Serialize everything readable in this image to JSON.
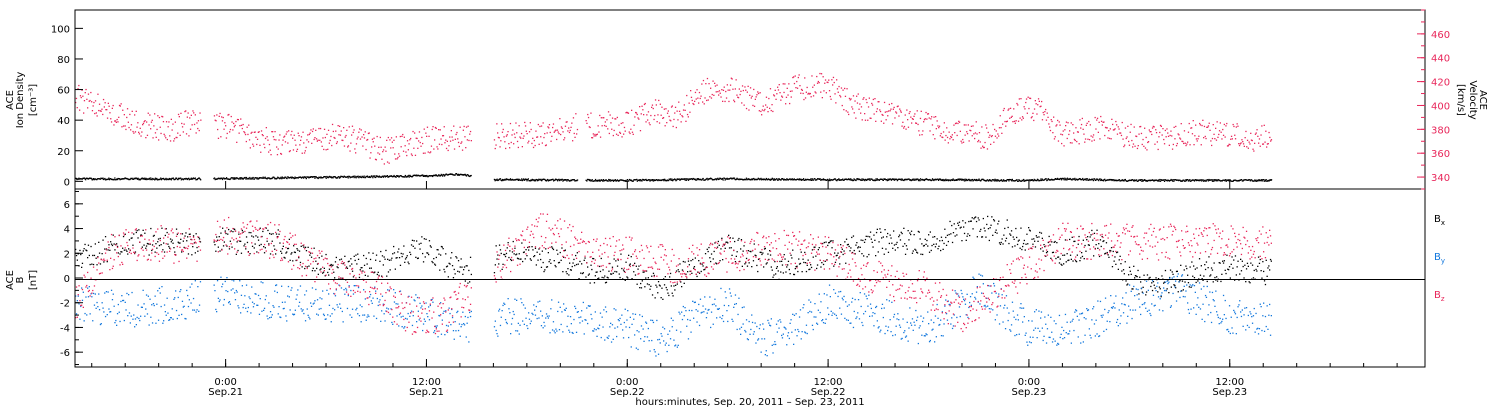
{
  "colors": {
    "black": "#000000",
    "pink": "#e8265a",
    "blue": "#1177dd"
  },
  "x_axis": {
    "range": [
      "2011-09-20T15:00",
      "2011-09-23T23:40"
    ],
    "ticks": [
      {
        "time": "2011-09-21T00:00",
        "line1": "0:00",
        "line2": "Sep.21"
      },
      {
        "time": "2011-09-21T12:00",
        "line1": "12:00",
        "line2": "Sep.21"
      },
      {
        "time": "2011-09-22T00:00",
        "line1": "0:00",
        "line2": "Sep.22"
      },
      {
        "time": "2011-09-22T12:00",
        "line1": "12:00",
        "line2": "Sep.22"
      },
      {
        "time": "2011-09-23T00:00",
        "line1": "0:00",
        "line2": "Sep.23"
      },
      {
        "time": "2011-09-23T12:00",
        "line1": "12:00",
        "line2": "Sep.23"
      }
    ],
    "label": "hours:minutes, Sep. 20, 2011 – Sep. 23, 2011"
  },
  "top_panel": {
    "left_label": [
      "ACE",
      "Ion Density"
    ],
    "left_units": "[cm⁻³]",
    "right_label": [
      "ACE",
      "Velocity"
    ],
    "right_units": "[km/s]"
  },
  "bottom_panel": {
    "left_label": [
      "ACE",
      "B"
    ],
    "left_units": "[nT]",
    "legend": [
      {
        "name": "B",
        "sub": "x",
        "color": "#000000"
      },
      {
        "name": "B",
        "sub": "y",
        "color": "#1177dd"
      },
      {
        "name": "B",
        "sub": "z",
        "color": "#e8265a"
      }
    ]
  },
  "chart_data": [
    {
      "type": "scatter",
      "panel": "top",
      "left_axis": {
        "ylim": [
          -5,
          112
        ],
        "ticks": [
          0,
          20,
          40,
          60,
          80,
          100
        ]
      },
      "right_axis": {
        "ylim": [
          330,
          480
        ],
        "ticks": [
          340,
          360,
          380,
          400,
          420,
          440,
          460
        ]
      },
      "gaps": [
        [
          "2011-09-20T22:30",
          "2011-09-20T23:15"
        ],
        [
          "2011-09-21T14:40",
          "2011-09-21T16:00"
        ],
        [
          "2011-09-21T21:00",
          "2011-09-21T21:30"
        ]
      ],
      "data_end": "2011-09-23T14:30",
      "series": [
        {
          "axis": "right",
          "color": "#e8265a",
          "points": [
            [
              "2011-09-20T15:00",
              408
            ],
            [
              "2011-09-20T17:00",
              395
            ],
            [
              "2011-09-20T19:00",
              385
            ],
            [
              "2011-09-20T20:30",
              380
            ],
            [
              "2011-09-20T22:00",
              387
            ],
            [
              "2011-09-21T00:00",
              383
            ],
            [
              "2011-09-21T02:00",
              372
            ],
            [
              "2011-09-21T03:30",
              368
            ],
            [
              "2011-09-21T05:00",
              372
            ],
            [
              "2011-09-21T07:00",
              375
            ],
            [
              "2011-09-21T08:00",
              370
            ],
            [
              "2011-09-21T09:30",
              362
            ],
            [
              "2011-09-21T11:00",
              368
            ],
            [
              "2011-09-21T12:30",
              373
            ],
            [
              "2011-09-21T14:00",
              372
            ],
            [
              "2011-09-21T17:00",
              375
            ],
            [
              "2011-09-21T19:00",
              376
            ],
            [
              "2011-09-21T21:00",
              383
            ],
            [
              "2011-09-22T00:00",
              385
            ],
            [
              "2011-09-22T01:30",
              395
            ],
            [
              "2011-09-22T03:00",
              392
            ],
            [
              "2011-09-22T04:30",
              412
            ],
            [
              "2011-09-22T06:00",
              415
            ],
            [
              "2011-09-22T08:00",
              402
            ],
            [
              "2011-09-22T10:00",
              415
            ],
            [
              "2011-09-22T12:00",
              418
            ],
            [
              "2011-09-22T13:30",
              400
            ],
            [
              "2011-09-22T16:00",
              392
            ],
            [
              "2011-09-22T18:00",
              383
            ],
            [
              "2011-09-22T20:00",
              378
            ],
            [
              "2011-09-22T21:30",
              375
            ],
            [
              "2011-09-22T23:00",
              395
            ],
            [
              "2011-09-23T00:30",
              398
            ],
            [
              "2011-09-23T02:00",
              375
            ],
            [
              "2011-09-23T04:00",
              382
            ],
            [
              "2011-09-23T06:00",
              375
            ],
            [
              "2011-09-23T08:00",
              373
            ],
            [
              "2011-09-23T10:00",
              378
            ],
            [
              "2011-09-23T12:00",
              376
            ],
            [
              "2011-09-23T13:30",
              373
            ],
            [
              "2011-09-23T14:30",
              375
            ]
          ]
        },
        {
          "axis": "left",
          "color": "#000000",
          "points": [
            [
              "2011-09-20T15:00",
              2
            ],
            [
              "2011-09-20T22:00",
              2
            ],
            [
              "2011-09-21T06:00",
              3
            ],
            [
              "2011-09-21T12:00",
              4
            ],
            [
              "2011-09-21T14:00",
              5
            ],
            [
              "2011-09-21T16:00",
              1.5
            ],
            [
              "2011-09-22T00:00",
              1
            ],
            [
              "2011-09-22T06:00",
              2
            ],
            [
              "2011-09-22T12:00",
              1.5
            ],
            [
              "2011-09-22T18:00",
              1.5
            ],
            [
              "2011-09-23T00:00",
              1
            ],
            [
              "2011-09-23T02:00",
              2
            ],
            [
              "2011-09-23T06:00",
              1
            ],
            [
              "2011-09-23T14:30",
              1
            ]
          ]
        }
      ]
    },
    {
      "type": "scatter",
      "panel": "bottom",
      "ylim": [
        -7.2,
        7.2
      ],
      "ticks": [
        -6,
        -4,
        -2,
        0,
        2,
        4,
        6
      ],
      "zero_line": true,
      "gaps": [
        [
          "2011-09-20T22:30",
          "2011-09-20T23:15"
        ],
        [
          "2011-09-21T14:40",
          "2011-09-21T16:00"
        ]
      ],
      "data_end": "2011-09-23T14:30",
      "series": [
        {
          "name": "Bx",
          "color": "#000000",
          "points": [
            [
              "2011-09-20T15:00",
              1.5
            ],
            [
              "2011-09-20T18:00",
              3
            ],
            [
              "2011-09-20T21:00",
              3
            ],
            [
              "2011-09-21T00:00",
              3
            ],
            [
              "2011-09-21T03:00",
              3
            ],
            [
              "2011-09-21T06:00",
              1
            ],
            [
              "2011-09-21T09:00",
              1
            ],
            [
              "2011-09-21T12:00",
              2.5
            ],
            [
              "2011-09-21T14:00",
              0.5
            ],
            [
              "2011-09-21T17:00",
              2
            ],
            [
              "2011-09-21T20:00",
              1.5
            ],
            [
              "2011-09-21T22:00",
              0.5
            ],
            [
              "2011-09-22T00:00",
              1
            ],
            [
              "2011-09-22T02:00",
              -1
            ],
            [
              "2011-09-22T04:00",
              1
            ],
            [
              "2011-09-22T06:00",
              2.5
            ],
            [
              "2011-09-22T09:00",
              1
            ],
            [
              "2011-09-22T12:00",
              2
            ],
            [
              "2011-09-22T15:00",
              3
            ],
            [
              "2011-09-22T18:00",
              3
            ],
            [
              "2011-09-22T20:00",
              4
            ],
            [
              "2011-09-22T22:00",
              4
            ],
            [
              "2011-09-23T00:00",
              3
            ],
            [
              "2011-09-23T02:00",
              2
            ],
            [
              "2011-09-23T04:00",
              3
            ],
            [
              "2011-09-23T06:00",
              0
            ],
            [
              "2011-09-23T08:00",
              -0.5
            ],
            [
              "2011-09-23T10:00",
              0.5
            ],
            [
              "2011-09-23T12:00",
              1
            ],
            [
              "2011-09-23T14:30",
              0.5
            ]
          ]
        },
        {
          "name": "By",
          "color": "#1177dd",
          "points": [
            [
              "2011-09-20T15:00",
              -2
            ],
            [
              "2011-09-20T18:00",
              -2.5
            ],
            [
              "2011-09-20T21:00",
              -2
            ],
            [
              "2011-09-21T00:00",
              -1
            ],
            [
              "2011-09-21T03:00",
              -2
            ],
            [
              "2011-09-21T06:00",
              -2
            ],
            [
              "2011-09-21T09:00",
              -2
            ],
            [
              "2011-09-21T12:00",
              -3
            ],
            [
              "2011-09-21T14:00",
              -4
            ],
            [
              "2011-09-21T17:00",
              -3
            ],
            [
              "2011-09-21T20:00",
              -3
            ],
            [
              "2011-09-22T00:00",
              -4
            ],
            [
              "2011-09-22T02:00",
              -5
            ],
            [
              "2011-09-22T04:00",
              -3
            ],
            [
              "2011-09-22T06:00",
              -2
            ],
            [
              "2011-09-22T08:00",
              -5
            ],
            [
              "2011-09-22T10:00",
              -4
            ],
            [
              "2011-09-22T12:00",
              -2
            ],
            [
              "2011-09-22T15:00",
              -3
            ],
            [
              "2011-09-22T18:00",
              -4
            ],
            [
              "2011-09-22T21:00",
              -1
            ],
            [
              "2011-09-23T00:00",
              -4
            ],
            [
              "2011-09-23T03:00",
              -4
            ],
            [
              "2011-09-23T06:00",
              -2
            ],
            [
              "2011-09-23T09:00",
              -1
            ],
            [
              "2011-09-23T12:00",
              -3
            ],
            [
              "2011-09-23T14:30",
              -3.5
            ]
          ]
        },
        {
          "name": "Bz",
          "color": "#e8265a",
          "points": [
            [
              "2011-09-20T15:00",
              -2
            ],
            [
              "2011-09-20T17:00",
              2
            ],
            [
              "2011-09-20T19:00",
              3
            ],
            [
              "2011-09-20T22:00",
              2.5
            ],
            [
              "2011-09-21T00:00",
              3.5
            ],
            [
              "2011-09-21T03:00",
              3
            ],
            [
              "2011-09-21T06:00",
              0.5
            ],
            [
              "2011-09-21T09:00",
              -1
            ],
            [
              "2011-09-21T11:00",
              -3
            ],
            [
              "2011-09-21T13:00",
              -3
            ],
            [
              "2011-09-21T17:00",
              2
            ],
            [
              "2011-09-21T19:00",
              4
            ],
            [
              "2011-09-21T22:00",
              2
            ],
            [
              "2011-09-22T00:00",
              2
            ],
            [
              "2011-09-22T03:00",
              1
            ],
            [
              "2011-09-22T06:00",
              2
            ],
            [
              "2011-09-22T09:00",
              2.5
            ],
            [
              "2011-09-22T12:00",
              2
            ],
            [
              "2011-09-22T15:00",
              0
            ],
            [
              "2011-09-22T18:00",
              -1
            ],
            [
              "2011-09-22T20:00",
              -3
            ],
            [
              "2011-09-22T22:00",
              -1
            ],
            [
              "2011-09-23T00:00",
              1
            ],
            [
              "2011-09-23T02:00",
              3
            ],
            [
              "2011-09-23T06:00",
              3
            ],
            [
              "2011-09-23T10:00",
              3
            ],
            [
              "2011-09-23T14:30",
              3
            ]
          ]
        }
      ]
    }
  ]
}
